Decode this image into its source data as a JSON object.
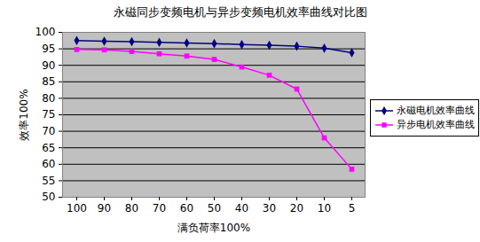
{
  "chart_data": {
    "type": "line",
    "title": "永磁同步变频电机与异步变频电机效率曲线对比图",
    "x_label": "满负荷率100%",
    "y_label": "效率100%",
    "categories": [
      "100",
      "90",
      "80",
      "70",
      "60",
      "50",
      "40",
      "30",
      "20",
      "10",
      "5"
    ],
    "series": [
      {
        "name": "永磁电机效率曲线",
        "color": "#000080",
        "marker": "diamond",
        "values": [
          97.5,
          97.3,
          97.2,
          97.0,
          96.8,
          96.6,
          96.3,
          96.1,
          95.8,
          95.2,
          93.8
        ]
      },
      {
        "name": "异步电机效率曲线",
        "color": "#ff00ff",
        "marker": "square",
        "values": [
          94.8,
          94.7,
          94.2,
          93.5,
          92.8,
          91.8,
          89.5,
          87.0,
          82.8,
          68.0,
          58.5
        ]
      }
    ],
    "ylim": [
      50,
      100
    ],
    "yticks": [
      50,
      55,
      60,
      65,
      70,
      75,
      80,
      85,
      90,
      95,
      100
    ],
    "grid": true,
    "legend": "right"
  }
}
